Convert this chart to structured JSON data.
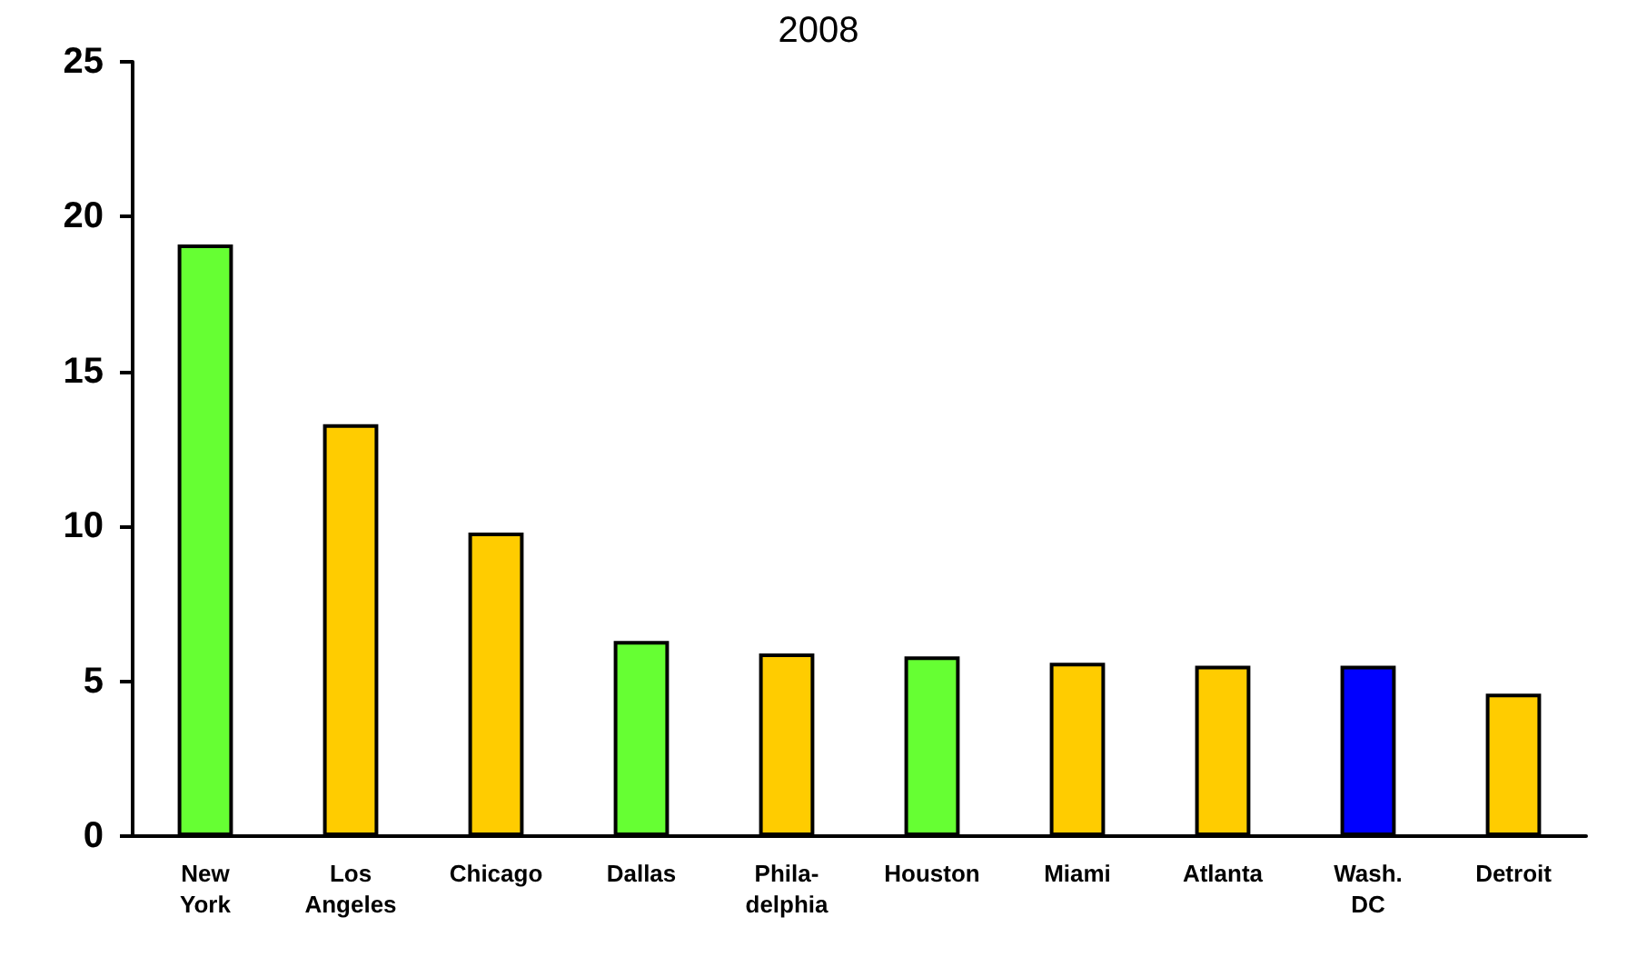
{
  "chart_data": {
    "type": "bar",
    "subtitle": "2008",
    "categories": [
      "New\nYork",
      "Los\nAngeles",
      "Chicago",
      "Dallas",
      "Phila-\ndelphia",
      "Houston",
      "Miami",
      "Atlanta",
      "Wash.\nDC",
      "Detroit"
    ],
    "values": [
      19.1,
      13.3,
      9.8,
      6.3,
      5.9,
      5.8,
      5.6,
      5.5,
      5.5,
      4.6
    ],
    "colors": [
      "#66ff33",
      "#ffcc00",
      "#ffcc00",
      "#66ff33",
      "#ffcc00",
      "#66ff33",
      "#ffcc00",
      "#ffcc00",
      "#0000ff",
      "#ffcc00"
    ],
    "ylim": [
      0,
      25
    ],
    "yticks": [
      0,
      5,
      10,
      15,
      20,
      25
    ],
    "grid": false
  }
}
